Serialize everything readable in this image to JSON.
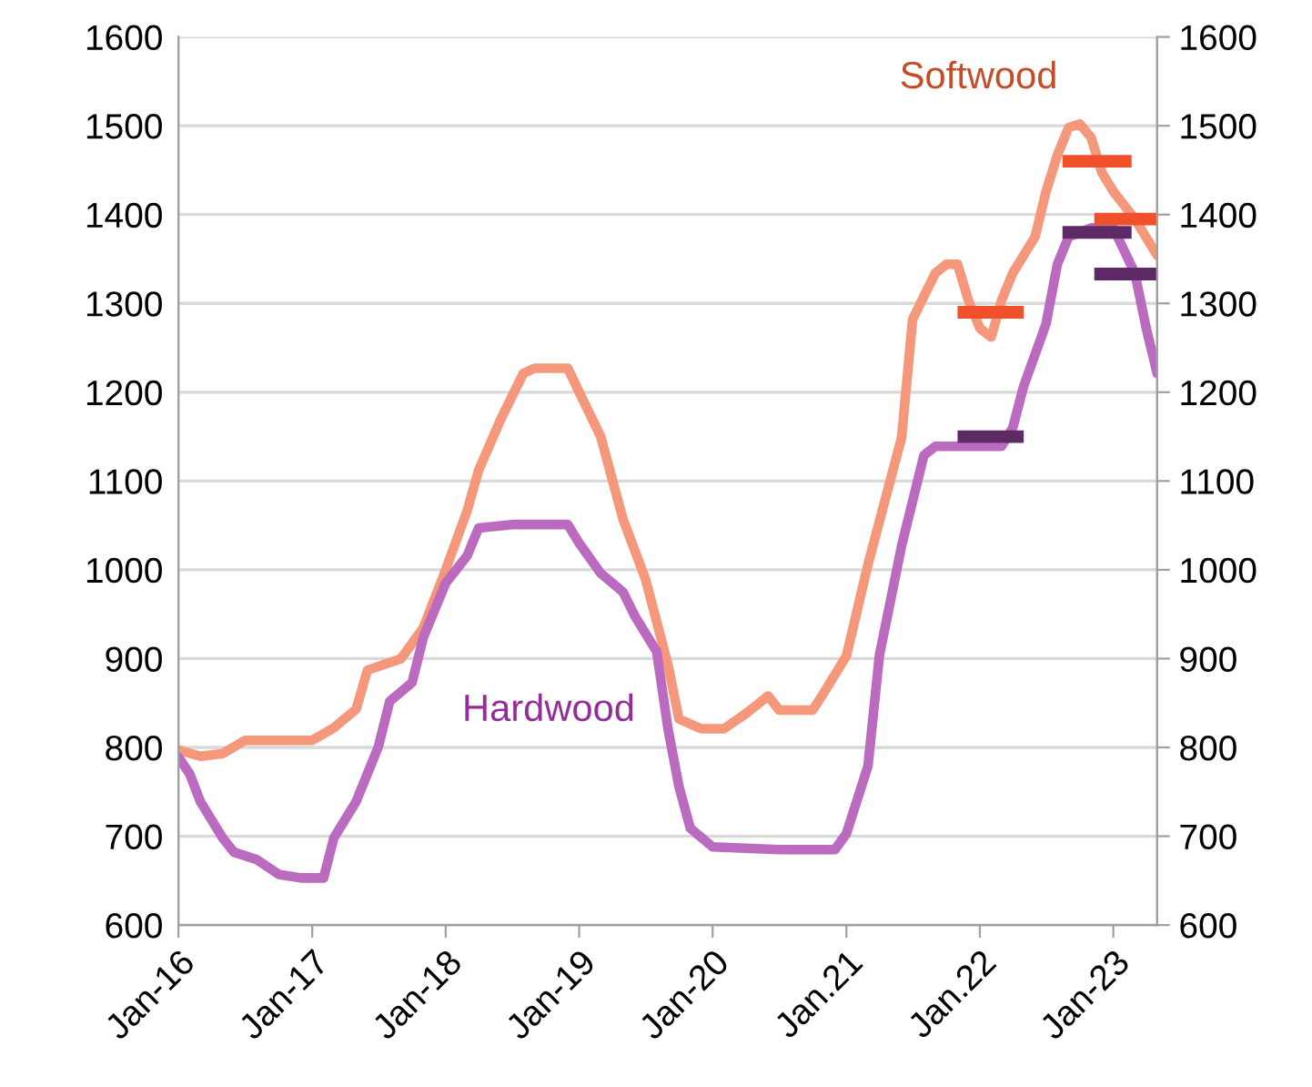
{
  "chart_data": {
    "type": "line",
    "legend": false,
    "grid": "y",
    "line_style": "solid",
    "marker": "none",
    "xlim": [
      "2016-01",
      "2023-05"
    ],
    "xticks": [
      {
        "value": "2016-01",
        "label": "Jan-16"
      },
      {
        "value": "2017-01",
        "label": "Jan-17"
      },
      {
        "value": "2018-01",
        "label": "Jan-18"
      },
      {
        "value": "2019-01",
        "label": "Jan-19"
      },
      {
        "value": "2020-01",
        "label": "Jan-20"
      },
      {
        "value": "2021-01",
        "label": "Jan.21"
      },
      {
        "value": "2022-01",
        "label": "Jan.22"
      },
      {
        "value": "2023-01",
        "label": "Jan-23"
      }
    ],
    "ylim": [
      600,
      1600
    ],
    "yticks": [
      600,
      700,
      800,
      900,
      1000,
      1100,
      1200,
      1300,
      1400,
      1500,
      1600
    ],
    "y2lim": [
      600,
      1600
    ],
    "y2ticks": [
      600,
      700,
      800,
      900,
      1000,
      1100,
      1200,
      1300,
      1400,
      1500,
      1600
    ],
    "series": [
      {
        "name": "Softwood",
        "color": "#f5977a",
        "x": [
          "2016-01",
          "2016-03",
          "2016-05",
          "2016-07",
          "2016-10",
          "2017-01",
          "2017-03",
          "2017-05",
          "2017-06",
          "2017-09",
          "2017-11",
          "2018-01",
          "2018-03",
          "2018-04",
          "2018-06",
          "2018-08",
          "2018-09",
          "2018-12",
          "2019-01",
          "2019-03",
          "2019-05",
          "2019-07",
          "2019-09",
          "2019-10",
          "2019-12",
          "2020-02",
          "2020-04",
          "2020-06",
          "2020-07",
          "2020-10",
          "2020-11",
          "2021-01",
          "2021-03",
          "2021-06",
          "2021-07",
          "2021-09",
          "2021-10",
          "2021-11",
          "2021-12",
          "2022-01",
          "2022-02",
          "2022-03",
          "2022-04",
          "2022-06",
          "2022-07",
          "2022-08",
          "2022-09",
          "2022-10",
          "2022-11",
          "2022-12",
          "2023-01",
          "2023-03",
          "2023-05"
        ],
        "values": [
          797,
          790,
          793,
          808,
          808,
          808,
          822,
          843,
          887,
          900,
          935,
          1000,
          1067,
          1112,
          1170,
          1221,
          1227,
          1227,
          1200,
          1150,
          1057,
          990,
          893,
          832,
          821,
          821,
          838,
          858,
          842,
          842,
          862,
          903,
          1006,
          1149,
          1282,
          1334,
          1344,
          1344,
          1303,
          1272,
          1262,
          1303,
          1334,
          1375,
          1426,
          1467,
          1498,
          1502,
          1487,
          1447,
          1426,
          1395,
          1354
        ]
      },
      {
        "name": "Hardwood",
        "color": "#bb6bbf",
        "x": [
          "2016-01",
          "2016-02",
          "2016-03",
          "2016-05",
          "2016-06",
          "2016-08",
          "2016-10",
          "2016-12",
          "2017-02",
          "2017-03",
          "2017-05",
          "2017-07",
          "2017-08",
          "2017-10",
          "2017-11",
          "2018-01",
          "2018-03",
          "2018-04",
          "2018-07",
          "2018-12",
          "2019-01",
          "2019-03",
          "2019-05",
          "2019-06",
          "2019-08",
          "2019-09",
          "2019-10",
          "2019-11",
          "2020-01",
          "2020-07",
          "2020-12",
          "2021-01",
          "2021-03",
          "2021-04",
          "2021-06",
          "2021-08",
          "2021-09",
          "2022-03",
          "2022-04",
          "2022-05",
          "2022-07",
          "2022-08",
          "2022-09",
          "2022-11",
          "2023-01",
          "2023-03",
          "2023-04",
          "2023-05"
        ],
        "values": [
          789,
          770,
          739,
          698,
          682,
          674,
          657,
          653,
          653,
          698,
          739,
          801,
          852,
          873,
          924,
          985,
          1016,
          1047,
          1051,
          1051,
          1030,
          996,
          975,
          949,
          908,
          821,
          756,
          709,
          688,
          685,
          685,
          703,
          779,
          903,
          1027,
          1129,
          1139,
          1139,
          1160,
          1207,
          1277,
          1344,
          1375,
          1385,
          1385,
          1334,
          1272,
          1221
        ]
      },
      {
        "color": "#f0502a",
        "x": [
          "2021-11",
          "2022-05"
        ],
        "values": [
          1290,
          1290
        ]
      },
      {
        "color": "#f0502a",
        "x": [
          "2022-08-15",
          "2023-02-20"
        ],
        "values": [
          1460,
          1460
        ]
      },
      {
        "color": "#f0502a",
        "x": [
          "2022-11-10",
          "2023-05"
        ],
        "values": [
          1395,
          1395
        ]
      },
      {
        "color": "#5e2a66",
        "x": [
          "2021-11",
          "2022-05"
        ],
        "values": [
          1150,
          1150
        ]
      },
      {
        "color": "#5e2a66",
        "x": [
          "2022-08-15",
          "2023-02-20"
        ],
        "values": [
          1380,
          1380
        ]
      },
      {
        "color": "#5e2a66",
        "x": [
          "2022-11-10",
          "2023-05"
        ],
        "values": [
          1333,
          1333
        ]
      }
    ]
  }
}
